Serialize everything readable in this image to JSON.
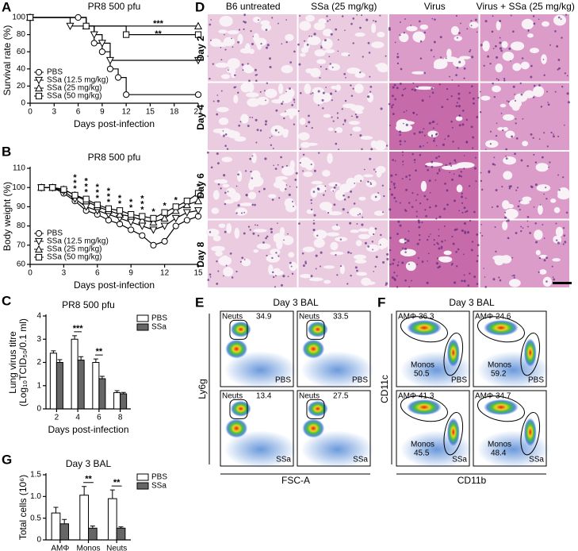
{
  "chart_data": [
    {
      "panel": "A",
      "type": "line",
      "step": true,
      "title": "PR8 500 pfu",
      "xlabel": "Days post-infection",
      "ylabel": "Survival rate (%)",
      "xlim": [
        0,
        21
      ],
      "xticks": [
        0,
        3,
        6,
        9,
        12,
        15,
        18,
        21
      ],
      "ylim": [
        0,
        100
      ],
      "yticks": [
        0,
        20,
        40,
        60,
        80,
        100
      ],
      "legend": "lower left",
      "series": [
        {
          "name": "PBS",
          "marker": "circle",
          "color": "#000000",
          "x": [
            0,
            6,
            7,
            8,
            9,
            10,
            11,
            12,
            21
          ],
          "values": [
            100,
            100,
            90,
            70,
            60,
            40,
            30,
            10,
            10
          ]
        },
        {
          "name": "SSa (12.5 mg/kg)",
          "marker": "triangle-down",
          "color": "#000000",
          "x": [
            0,
            5,
            8,
            9,
            10,
            21
          ],
          "values": [
            100,
            90,
            80,
            70,
            50,
            50
          ]
        },
        {
          "name": "SSa (25 mg/kg)",
          "marker": "triangle-up",
          "color": "#000000",
          "x": [
            0,
            7,
            21
          ],
          "values": [
            100,
            90,
            90
          ]
        },
        {
          "name": "SSa (50 mg/kg)",
          "marker": "square",
          "color": "#000000",
          "x": [
            0,
            7,
            12,
            21
          ],
          "values": [
            100,
            90,
            80,
            80
          ]
        }
      ],
      "annotations": [
        {
          "x": 16,
          "text": "***"
        },
        {
          "x": 16,
          "text": "**"
        }
      ]
    },
    {
      "panel": "B",
      "type": "line",
      "step": false,
      "title": "PR8 500 pfu",
      "xlabel": "Days post-infection",
      "ylabel": "Body weight (%)",
      "xlim": [
        0,
        15
      ],
      "xticks": [
        0,
        3,
        6,
        9,
        12,
        15
      ],
      "ylim": [
        60,
        110
      ],
      "yticks": [
        60,
        70,
        80,
        90,
        100,
        110
      ],
      "legend": "lower left",
      "x": [
        1,
        2,
        3,
        4,
        5,
        6,
        7,
        8,
        9,
        10,
        11,
        12,
        13,
        14,
        15
      ],
      "series": [
        {
          "name": "PBS",
          "marker": "circle",
          "color": "#000000",
          "values": [
            100,
            100,
            97,
            93,
            88,
            86,
            83,
            81,
            78,
            75,
            70,
            72,
            80,
            83,
            85
          ]
        },
        {
          "name": "SSa (12.5 mg/kg)",
          "marker": "triangle-down",
          "color": "#000000",
          "values": [
            100,
            100,
            98,
            94,
            90,
            88,
            86,
            84,
            82,
            80,
            78,
            80,
            84,
            87,
            88
          ]
        },
        {
          "name": "SSa (25 mg/kg)",
          "marker": "triangle-up",
          "color": "#000000",
          "values": [
            100,
            100,
            99,
            96,
            93,
            90,
            88,
            86,
            85,
            83,
            82,
            84,
            88,
            91,
            93
          ]
        },
        {
          "name": "SSa (50 mg/kg)",
          "marker": "square",
          "color": "#000000",
          "values": [
            100,
            100,
            99,
            96,
            94,
            91,
            89,
            88,
            86,
            85,
            84,
            87,
            90,
            93,
            97
          ]
        }
      ],
      "annotations": [
        {
          "x": 4,
          "text": "***"
        },
        {
          "x": 5,
          "text": "***"
        },
        {
          "x": 6,
          "text": "***"
        },
        {
          "x": 7,
          "text": "***"
        },
        {
          "x": 8,
          "text": "**"
        },
        {
          "x": 9,
          "text": "**"
        },
        {
          "x": 10,
          "text": "***"
        },
        {
          "x": 11,
          "text": "*"
        },
        {
          "x": 12,
          "text": "*"
        },
        {
          "x": 13,
          "text": "*"
        },
        {
          "x": 15,
          "text": "*"
        }
      ]
    },
    {
      "panel": "C",
      "type": "bar",
      "title": "PR8 500 pfu",
      "xlabel": "Days post-infection",
      "ylabel": [
        "Lung virus titre",
        "(Log₁₀TCID₅₀/0.1 ml)"
      ],
      "categories": [
        "2",
        "4",
        "6",
        "8"
      ],
      "ylim": [
        0,
        4
      ],
      "yticks": [
        0,
        1,
        2,
        3,
        4
      ],
      "legend": "right",
      "series": [
        {
          "name": "PBS",
          "color": "#ffffff",
          "values": [
            2.4,
            3.0,
            2.0,
            0.7
          ],
          "errors": [
            0.1,
            0.15,
            0.15,
            0.08
          ]
        },
        {
          "name": "SSa",
          "color": "#666666",
          "values": [
            2.0,
            2.1,
            1.3,
            0.65
          ],
          "errors": [
            0.12,
            0.15,
            0.1,
            0.06
          ]
        }
      ],
      "annotations": [
        {
          "x": "4",
          "text": "***"
        },
        {
          "x": "6",
          "text": "**"
        }
      ]
    },
    {
      "panel": "G",
      "type": "bar",
      "title": "Day 3 BAL",
      "ylabel": [
        "Total cells (10⁶)"
      ],
      "categories": [
        "AMΦ",
        "Monos",
        "Neuts"
      ],
      "ylim": [
        0,
        1.5
      ],
      "yticks": [
        0,
        0.5,
        {
          "value": 1,
          "label": "1.0"
        },
        1.5
      ],
      "legend": "right",
      "series": [
        {
          "name": "PBS",
          "color": "#ffffff",
          "values": [
            0.62,
            1.03,
            0.95
          ],
          "errors": [
            0.13,
            0.2,
            0.2
          ]
        },
        {
          "name": "SSa",
          "color": "#666666",
          "values": [
            0.37,
            0.27,
            0.27
          ],
          "errors": [
            0.1,
            0.05,
            0.03
          ]
        }
      ],
      "annotations": [
        {
          "x": "Monos",
          "text": "**"
        },
        {
          "x": "Neuts",
          "text": "**"
        }
      ]
    }
  ],
  "histology": {
    "panel": "D",
    "columns": [
      "B6 untreated",
      "SSa (25 mg/kg)",
      "Virus",
      "Virus + SSa (25 mg/kg)"
    ],
    "rows": [
      "Day 2",
      "Day 4",
      "Day 6",
      "Day 8"
    ]
  },
  "flow_e": {
    "panel": "E",
    "title": "Day 3 BAL",
    "xlabel": "FSC-A",
    "ylabel": "Ly6g",
    "plots": [
      {
        "gates": [
          {
            "name": "Neuts",
            "value": 34.9
          }
        ],
        "label": "PBS"
      },
      {
        "gates": [
          {
            "name": "Neuts",
            "value": 33.5
          }
        ],
        "label": "PBS"
      },
      {
        "gates": [
          {
            "name": "Neuts",
            "value": 13.4
          }
        ],
        "label": "SSa"
      },
      {
        "gates": [
          {
            "name": "Neuts",
            "value": 27.5
          }
        ],
        "label": "SSa"
      }
    ]
  },
  "flow_f": {
    "panel": "F",
    "title": "Day 3 BAL",
    "xlabel": "CD11b",
    "ylabel": "CD11c",
    "plots": [
      {
        "gates": [
          {
            "name": "AMΦ",
            "value": 36.3
          },
          {
            "name": "Monos",
            "value": 50.5
          }
        ],
        "label": "PBS"
      },
      {
        "gates": [
          {
            "name": "AMΦ",
            "value": 24.6
          },
          {
            "name": "Monos",
            "value": 59.2
          }
        ],
        "label": "PBS"
      },
      {
        "gates": [
          {
            "name": "AMΦ",
            "value": 41.3
          },
          {
            "name": "Monos",
            "value": 45.5
          }
        ],
        "label": "SSa"
      },
      {
        "gates": [
          {
            "name": "AMΦ",
            "value": 34.7
          },
          {
            "name": "Monos",
            "value": 48.4
          }
        ],
        "label": "SSa"
      }
    ]
  }
}
